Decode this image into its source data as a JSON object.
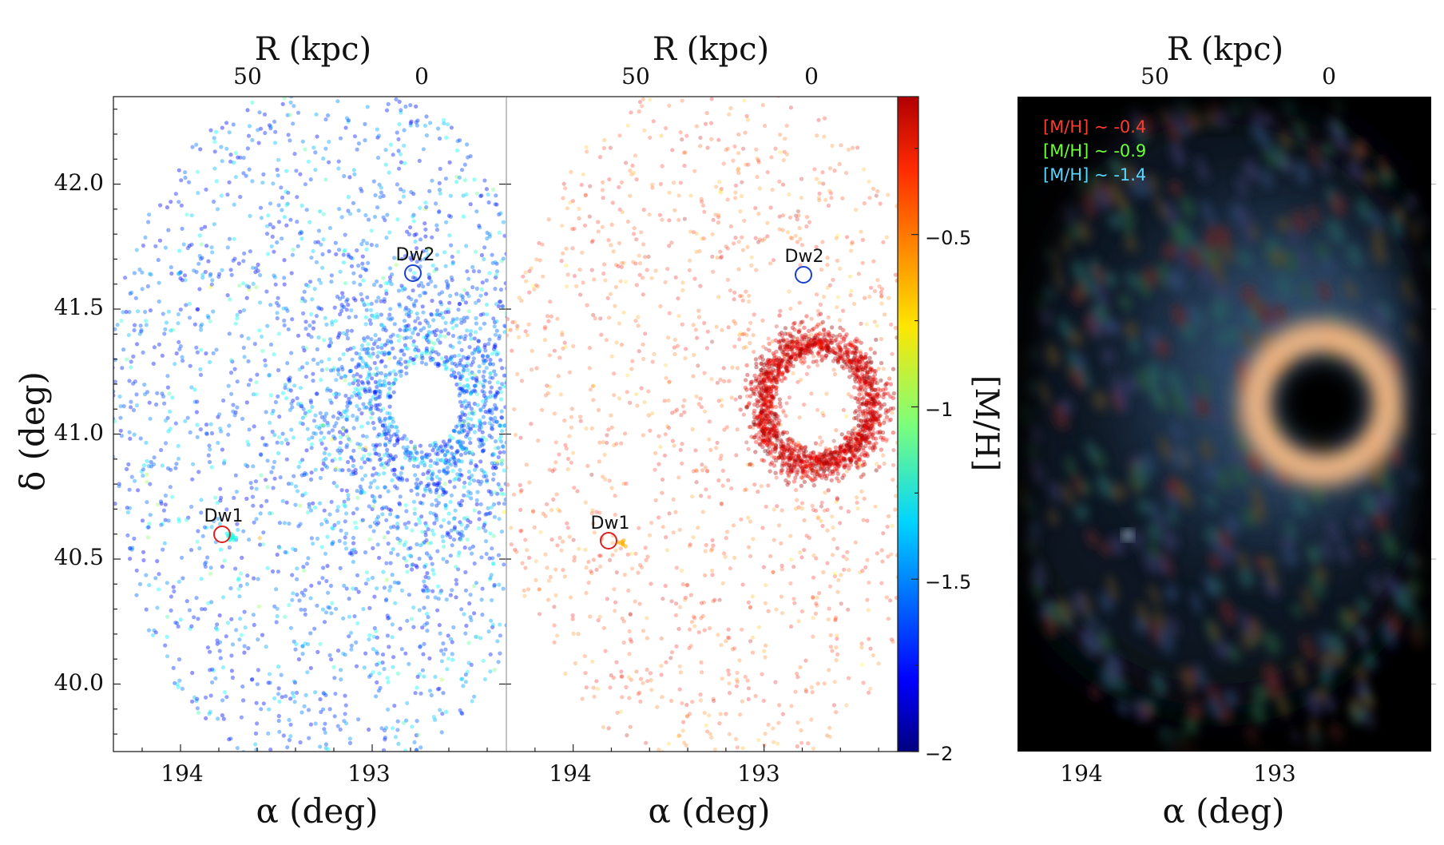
{
  "chart_data": [
    {
      "panel": "left",
      "type": "scatter",
      "xlabel": "α (deg)",
      "ylabel": "δ (deg)",
      "top_label": "R (kpc)",
      "xlim": [
        194.35,
        192.3
      ],
      "ylim": [
        39.73,
        42.35
      ],
      "xticks": [
        "194",
        "193"
      ],
      "yticks": [
        "40.0",
        "40.5",
        "41.0",
        "41.5",
        "42.0"
      ],
      "top_ticks": [
        "50",
        "0"
      ],
      "colormap": "jet",
      "color_range": [
        -2,
        -0.1
      ],
      "series": [
        {
          "name": "Dw1",
          "x": [
            193.74
          ],
          "y": [
            40.59
          ],
          "color": "#e02020"
        },
        {
          "name": "Dw2",
          "x": [
            192.74
          ],
          "y": [
            41.64
          ],
          "color": "#1a3fd0"
        }
      ]
    },
    {
      "panel": "middle",
      "type": "scatter",
      "xlabel": "α (deg)",
      "top_label": "R (kpc)",
      "xlim": [
        194.35,
        192.3
      ],
      "ylim": [
        39.73,
        42.35
      ],
      "xticks": [
        "194",
        "193"
      ],
      "top_ticks": [
        "50",
        "0"
      ],
      "colorbar_label": "[M/H]",
      "colorbar_ticks": [
        "−0.5",
        "−1",
        "−1.5",
        "−2"
      ],
      "colorbar_values": [
        -0.5,
        -1,
        -1.5,
        -2
      ],
      "colorbar_range": [
        -2,
        -0.1
      ],
      "series": [
        {
          "name": "Dw1",
          "x": [
            193.74
          ],
          "y": [
            40.56
          ],
          "color": "#e02020"
        },
        {
          "name": "Dw2",
          "x": [
            192.74
          ],
          "y": [
            41.63
          ],
          "color": "#1a3fd0"
        }
      ]
    },
    {
      "panel": "right",
      "type": "heatmap",
      "xlabel": "α (deg)",
      "top_label": "R (kpc)",
      "xticks": [
        "194",
        "193"
      ],
      "top_ticks": [
        "50",
        "0"
      ],
      "legend": [
        {
          "label": "[M/H]",
          "tail": " ∼ -0.4",
          "color": "#ff3b30"
        },
        {
          "label": "[M/H]",
          "tail": " ∼ -0.9",
          "color": "#6cff3a"
        },
        {
          "label": "[M/H]",
          "tail": " ∼ -1.4",
          "color": "#59d6ff"
        }
      ]
    }
  ]
}
